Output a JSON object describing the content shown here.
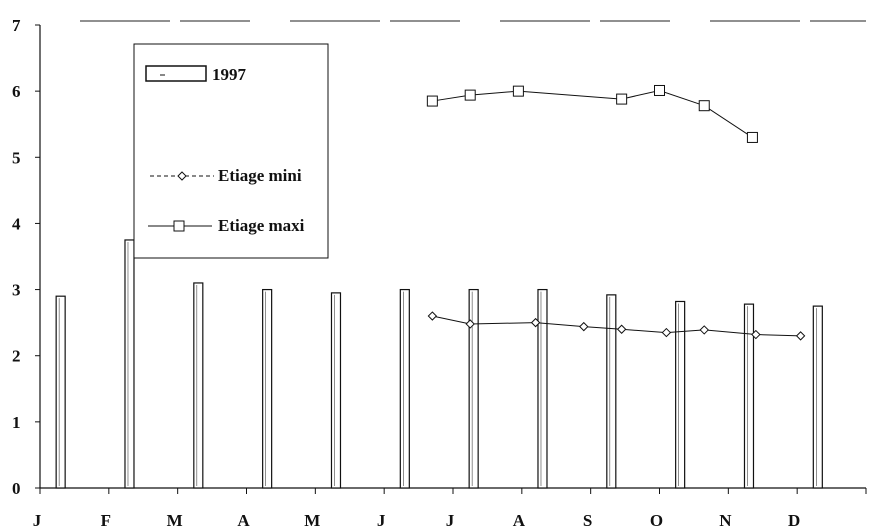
{
  "chart_data": {
    "type": "bar",
    "title": "",
    "xlabel": "",
    "ylabel": "",
    "ylim": [
      0,
      7
    ],
    "yticks": [
      "0",
      "1",
      "2",
      "3",
      "4",
      "5",
      "6",
      "7"
    ],
    "categories": [
      "J",
      "F",
      "M",
      "A",
      "M",
      "J",
      "J",
      "A",
      "S",
      "O",
      "N",
      "D"
    ],
    "series": [
      {
        "name": "1997",
        "type": "bar",
        "values": [
          2.9,
          3.75,
          3.1,
          3.0,
          2.95,
          3.0,
          3.0,
          3.0,
          2.92,
          2.82,
          2.78,
          2.75
        ]
      },
      {
        "name": "Etiage mini",
        "type": "line",
        "marker": "diamond",
        "x": [
          5.7,
          6.25,
          7.2,
          7.9,
          8.45,
          9.1,
          9.65,
          10.4,
          11.05
        ],
        "values": [
          2.6,
          2.48,
          2.5,
          2.44,
          2.4,
          2.35,
          2.39,
          2.32,
          2.3
        ]
      },
      {
        "name": "Etiage maxi",
        "type": "line",
        "marker": "square",
        "x": [
          5.7,
          6.25,
          6.95,
          8.45,
          9.0,
          9.65,
          10.35
        ],
        "values": [
          5.85,
          5.94,
          6.0,
          5.88,
          6.01,
          5.78,
          5.3
        ]
      }
    ],
    "legend": {
      "position": "top-left inside plot",
      "entries": [
        "1997",
        "Etiage mini",
        "Etiage maxi"
      ],
      "printed_labels": [
        "1997",
        "Etiage mini",
        "Etiage maxi"
      ]
    },
    "grid": false,
    "top_border": "dashed"
  }
}
